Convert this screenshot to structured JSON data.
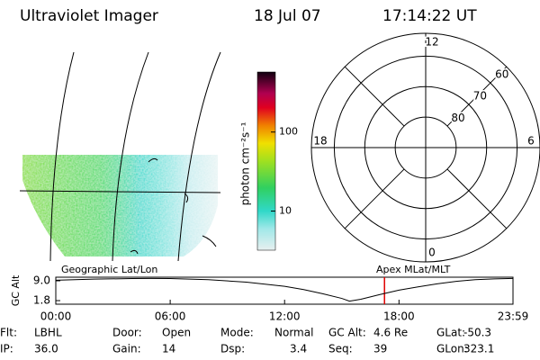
{
  "header": {
    "title": "Ultraviolet Imager",
    "date": "18 Jul 07",
    "time": "17:14:22 UT"
  },
  "colorbar": {
    "label": "photon cm⁻²s⁻¹",
    "scale": "log",
    "lim": [
      3.2,
      575
    ],
    "ticks": [
      100,
      10
    ]
  },
  "polar": {
    "mlat_ticks": [
      80,
      70,
      60
    ],
    "rlim": [
      90,
      52.5
    ],
    "mlt_ticks": [
      12,
      18,
      6,
      0
    ]
  },
  "chart_data": {
    "type": "line",
    "y_label": "GC Alt",
    "left_label": "Geographic Lat/Lon",
    "right_label": "Apex MLat/MLT",
    "x": [
      0,
      2,
      4,
      5,
      6,
      8,
      10,
      12,
      13,
      14,
      15,
      15.4,
      16,
      17,
      18,
      19,
      20,
      21,
      22,
      23,
      23.98
    ],
    "values": [
      9.2,
      9.6,
      9.8,
      9.85,
      9.8,
      9.4,
      8.5,
      7.0,
      5.8,
      4.3,
      2.6,
      1.6,
      2.3,
      4.0,
      5.6,
      6.8,
      7.9,
      8.8,
      9.4,
      9.7,
      9.85
    ],
    "color": "#000000",
    "marker": 17.24,
    "marker_color": "#e00000",
    "xlim": [
      0,
      23.98
    ],
    "ylim": [
      0.5,
      10.3
    ],
    "xticks": [
      {
        "value": 0,
        "label": "00:00"
      },
      {
        "value": 6,
        "label": "06:00"
      },
      {
        "value": 12,
        "label": "12:00"
      },
      {
        "value": 18,
        "label": "18:00"
      },
      {
        "value": 23.98,
        "label": "23:59"
      }
    ],
    "yticks": [
      {
        "value": 9,
        "label": "9.0"
      },
      {
        "value": 1.8,
        "label": "1.8"
      }
    ]
  },
  "status": [
    [
      {
        "key": "Flt:",
        "val": "LBHL"
      },
      {
        "key": "Door:",
        "val": "Open"
      },
      {
        "key": "Mode:",
        "val": "Normal"
      },
      {
        "key": "GC Alt:",
        "val": "4.6 Re"
      },
      {
        "key": "GLat:",
        "val": "-50.3"
      }
    ],
    [
      {
        "key": "IP:",
        "val": "36.0"
      },
      {
        "key": "Gain:",
        "val": "14"
      },
      {
        "key": "Dsp:",
        "val": "3.4"
      },
      {
        "key": "Seq:",
        "val": "39"
      },
      {
        "key": "GLon:",
        "val": "323.1"
      }
    ]
  ]
}
